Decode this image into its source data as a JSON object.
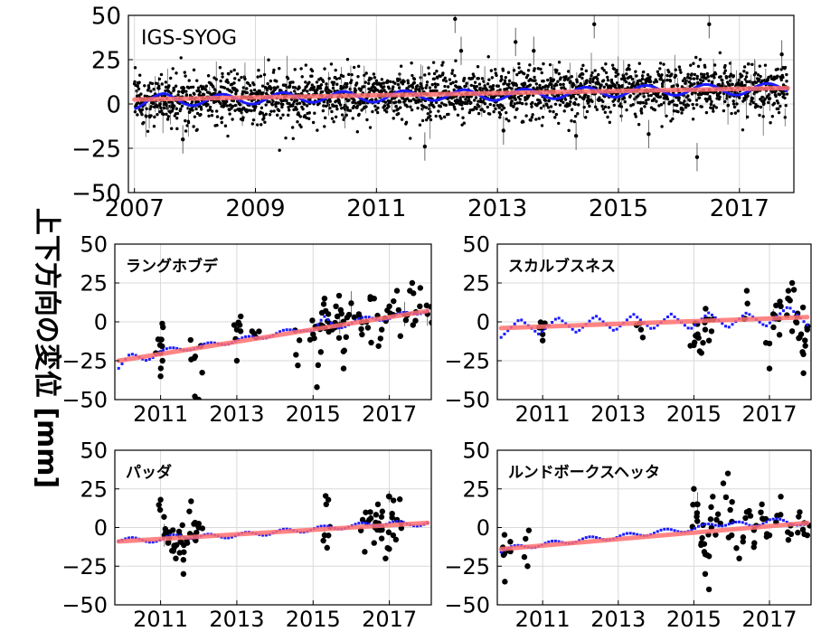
{
  "figure": {
    "ylabel": "上下方向の変位 [mm]"
  },
  "colors": {
    "points": "#000000",
    "model": "#1a1aff",
    "trend": "#ff7070",
    "grid": "#d9d9d9",
    "frame": "#000000"
  },
  "chart_data": [
    {
      "type": "scatter",
      "panel": "top",
      "title": "IGS-SYOG",
      "xlim": [
        2006.9,
        2017.9
      ],
      "ylim": [
        -50,
        50
      ],
      "xticks": [
        2007,
        2009,
        2011,
        2013,
        2015,
        2017
      ],
      "yticks": [
        -50,
        -25,
        0,
        25,
        50
      ],
      "grid": true,
      "series": [
        {
          "role": "observations",
          "style": "black points with error bars",
          "x_range": [
            2007.0,
            2017.8
          ],
          "mean_trend": [
            [
              2007.0,
              2.5
            ],
            [
              2017.8,
              9.0
            ]
          ],
          "scatter_sd": 7,
          "outliers": [
            [
              2007.8,
              -20
            ],
            [
              2011.8,
              -24
            ],
            [
              2012.3,
              48
            ],
            [
              2012.4,
              30
            ],
            [
              2013.1,
              -15
            ],
            [
              2013.3,
              35
            ],
            [
              2013.6,
              30
            ],
            [
              2014.3,
              -18
            ],
            [
              2014.6,
              45
            ],
            [
              2015.5,
              -17
            ],
            [
              2016.3,
              -30
            ],
            [
              2016.5,
              45
            ],
            [
              2017.7,
              28
            ]
          ]
        },
        {
          "role": "seasonal model",
          "amplitude": 3,
          "points": [
            [
              2007.0,
              0
            ],
            [
              2007.5,
              3
            ],
            [
              2008.0,
              2
            ],
            [
              2009.0,
              3
            ],
            [
              2010.0,
              4
            ],
            [
              2011.0,
              4
            ],
            [
              2012.0,
              5
            ],
            [
              2013.0,
              5
            ],
            [
              2014.0,
              6
            ],
            [
              2015.0,
              7
            ],
            [
              2016.0,
              8
            ],
            [
              2017.0,
              8
            ],
            [
              2017.8,
              9
            ]
          ]
        },
        {
          "role": "linear trend",
          "points": [
            [
              2007.0,
              2.5
            ],
            [
              2017.8,
              9.0
            ]
          ]
        }
      ]
    },
    {
      "type": "scatter",
      "panel": "middle-left",
      "title": "ラングホブデ",
      "xlim": [
        2009.8,
        2018.1
      ],
      "ylim": [
        -50,
        50
      ],
      "xticks": [
        2011,
        2013,
        2015,
        2017
      ],
      "yticks": [
        -50,
        -25,
        0,
        25,
        50
      ],
      "grid": true,
      "series": [
        {
          "role": "observations",
          "points": [
            [
              2011.0,
              -20
            ],
            [
              2011.0,
              -35
            ],
            [
              2011.05,
              -25
            ],
            [
              2011.9,
              -48
            ],
            [
              2012.0,
              -50
            ],
            [
              2013.0,
              -5
            ],
            [
              2013.0,
              -25
            ],
            [
              2013.5,
              -10
            ],
            [
              2014.6,
              -28
            ],
            [
              2015.0,
              -8
            ],
            [
              2015.1,
              -42
            ],
            [
              2015.2,
              -2
            ],
            [
              2015.3,
              15
            ],
            [
              2015.4,
              5
            ],
            [
              2015.5,
              -5
            ],
            [
              2015.6,
              10
            ],
            [
              2015.7,
              -2
            ],
            [
              2015.8,
              -30
            ],
            [
              2016.0,
              12
            ],
            [
              2016.2,
              5
            ],
            [
              2016.4,
              0
            ],
            [
              2016.6,
              15
            ],
            [
              2016.8,
              -5
            ],
            [
              2017.0,
              10
            ],
            [
              2017.2,
              20
            ],
            [
              2017.4,
              5
            ],
            [
              2017.6,
              25
            ],
            [
              2017.8,
              10
            ],
            [
              2018.0,
              5
            ]
          ]
        },
        {
          "role": "seasonal model",
          "points": [
            [
              2009.9,
              -29
            ],
            [
              2010.2,
              -22
            ],
            [
              2010.6,
              -24
            ],
            [
              2011.0,
              -19
            ],
            [
              2012.0,
              -16
            ],
            [
              2013.0,
              -12
            ],
            [
              2014.0,
              -8
            ],
            [
              2014.8,
              -4
            ],
            [
              2015.0,
              -6
            ],
            [
              2015.3,
              2
            ],
            [
              2015.6,
              -3
            ],
            [
              2016.0,
              -1
            ],
            [
              2016.5,
              3
            ],
            [
              2017.0,
              2
            ],
            [
              2017.5,
              6
            ],
            [
              2018.0,
              7
            ]
          ]
        },
        {
          "role": "linear trend",
          "points": [
            [
              2009.9,
              -25
            ],
            [
              2018.0,
              7
            ]
          ]
        }
      ]
    },
    {
      "type": "scatter",
      "panel": "middle-right",
      "title": "スカルブスネス",
      "xlim": [
        2009.8,
        2018.1
      ],
      "ylim": [
        -50,
        50
      ],
      "xticks": [
        2011,
        2013,
        2015,
        2017
      ],
      "yticks": [
        -50,
        -25,
        0,
        25,
        50
      ],
      "grid": true,
      "series": [
        {
          "role": "observations",
          "points": [
            [
              2011.0,
              -8
            ],
            [
              2011.0,
              -12
            ],
            [
              2013.6,
              -5
            ],
            [
              2015.0,
              -15
            ],
            [
              2015.1,
              -8
            ],
            [
              2015.2,
              -20
            ],
            [
              2015.3,
              -5
            ],
            [
              2015.4,
              -12
            ],
            [
              2016.4,
              20
            ],
            [
              2017.0,
              -30
            ],
            [
              2017.1,
              5
            ],
            [
              2017.3,
              10
            ],
            [
              2017.5,
              20
            ],
            [
              2017.6,
              25
            ],
            [
              2017.7,
              0
            ],
            [
              2017.8,
              -10
            ],
            [
              2017.9,
              -33
            ],
            [
              2018.0,
              -5
            ]
          ]
        },
        {
          "role": "seasonal model",
          "seasonal_amplitude": 8,
          "points": [
            [
              2009.9,
              -10
            ],
            [
              2010.4,
              2
            ],
            [
              2010.9,
              -8
            ],
            [
              2011.4,
              3
            ],
            [
              2011.9,
              -7
            ],
            [
              2012.4,
              4
            ],
            [
              2012.9,
              -6
            ],
            [
              2013.4,
              5
            ],
            [
              2013.9,
              -5
            ],
            [
              2014.4,
              5
            ],
            [
              2014.9,
              -5
            ],
            [
              2015.4,
              6
            ],
            [
              2015.9,
              -4
            ],
            [
              2016.4,
              6
            ],
            [
              2016.9,
              -3
            ],
            [
              2017.5,
              10
            ],
            [
              2018.0,
              -2
            ]
          ]
        },
        {
          "role": "linear trend",
          "points": [
            [
              2009.9,
              -4
            ],
            [
              2018.0,
              3
            ]
          ]
        }
      ]
    },
    {
      "type": "scatter",
      "panel": "bottom-left",
      "title": "パッダ",
      "xlim": [
        2009.8,
        2018.1
      ],
      "ylim": [
        -50,
        50
      ],
      "xticks": [
        2011,
        2013,
        2015,
        2017
      ],
      "yticks": [
        -50,
        -25,
        0,
        25,
        50
      ],
      "grid": true,
      "series": [
        {
          "role": "observations",
          "points": [
            [
              2011.0,
              18
            ],
            [
              2011.1,
              -5
            ],
            [
              2011.2,
              -10
            ],
            [
              2011.3,
              -15
            ],
            [
              2011.4,
              -20
            ],
            [
              2011.5,
              -5
            ],
            [
              2011.6,
              -30
            ],
            [
              2011.7,
              -10
            ],
            [
              2011.8,
              17
            ],
            [
              2011.9,
              -5
            ],
            [
              2012.0,
              0
            ],
            [
              2015.3,
              -5
            ],
            [
              2015.4,
              18
            ],
            [
              2016.3,
              5
            ],
            [
              2016.5,
              10
            ],
            [
              2016.6,
              -10
            ],
            [
              2016.7,
              15
            ],
            [
              2016.8,
              0
            ],
            [
              2016.9,
              -20
            ],
            [
              2017.0,
              20
            ],
            [
              2017.1,
              -5
            ],
            [
              2017.2,
              5
            ]
          ]
        },
        {
          "role": "seasonal model",
          "points": [
            [
              2009.9,
              -8
            ],
            [
              2011.0,
              -8
            ],
            [
              2011.5,
              -5
            ],
            [
              2012.0,
              -6
            ],
            [
              2013.0,
              -5
            ],
            [
              2014.0,
              -3
            ],
            [
              2015.0,
              -1
            ],
            [
              2016.0,
              1
            ],
            [
              2016.5,
              2
            ],
            [
              2017.0,
              3
            ],
            [
              2017.5,
              2
            ],
            [
              2018.0,
              3
            ]
          ]
        },
        {
          "role": "linear trend",
          "points": [
            [
              2009.9,
              -9
            ],
            [
              2018.0,
              3
            ]
          ]
        }
      ]
    },
    {
      "type": "scatter",
      "panel": "bottom-right",
      "title": "ルンドボークスヘッタ",
      "xlim": [
        2009.8,
        2018.1
      ],
      "ylim": [
        -50,
        50
      ],
      "xticks": [
        2011,
        2013,
        2015,
        2017
      ],
      "yticks": [
        -50,
        -25,
        0,
        25,
        50
      ],
      "grid": true,
      "series": [
        {
          "role": "observations",
          "points": [
            [
              2010.0,
              -35
            ],
            [
              2010.1,
              -15
            ],
            [
              2010.6,
              -25
            ],
            [
              2015.0,
              25
            ],
            [
              2015.1,
              15
            ],
            [
              2015.2,
              -10
            ],
            [
              2015.3,
              -30
            ],
            [
              2015.4,
              -40
            ],
            [
              2015.5,
              20
            ],
            [
              2015.6,
              5
            ],
            [
              2015.9,
              35
            ],
            [
              2016.0,
              -5
            ],
            [
              2016.2,
              -20
            ],
            [
              2016.4,
              10
            ],
            [
              2016.6,
              -10
            ],
            [
              2016.8,
              15
            ],
            [
              2017.0,
              -5
            ],
            [
              2017.3,
              20
            ],
            [
              2017.5,
              -8
            ],
            [
              2017.8,
              10
            ],
            [
              2018.0,
              -5
            ]
          ]
        },
        {
          "role": "seasonal model",
          "points": [
            [
              2009.9,
              -15
            ],
            [
              2010.5,
              -12
            ],
            [
              2011.0,
              -11
            ],
            [
              2012.0,
              -8
            ],
            [
              2013.0,
              -6
            ],
            [
              2014.0,
              -3
            ],
            [
              2015.0,
              -1
            ],
            [
              2015.5,
              2
            ],
            [
              2016.0,
              3
            ],
            [
              2016.5,
              1
            ],
            [
              2017.0,
              5
            ],
            [
              2017.5,
              3
            ],
            [
              2018.0,
              3
            ]
          ]
        },
        {
          "role": "linear trend",
          "points": [
            [
              2009.9,
              -14
            ],
            [
              2018.0,
              3
            ]
          ]
        }
      ]
    }
  ]
}
